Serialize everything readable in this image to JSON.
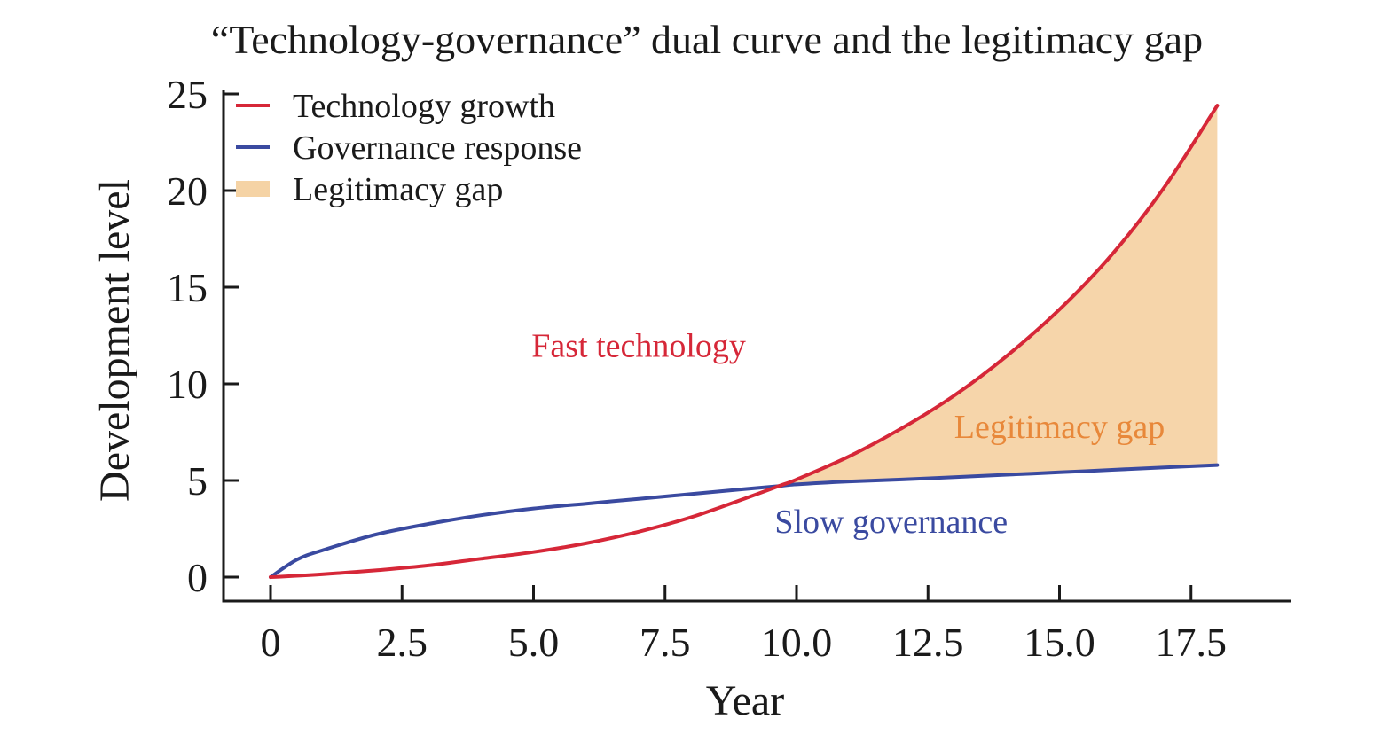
{
  "chart_data": {
    "type": "line",
    "title": "“Technology-governance” dual curve and the legitimacy gap",
    "xlabel": "Year",
    "ylabel": "Development level",
    "xlim": [
      -0.9,
      19.4
    ],
    "ylim": [
      -1.2,
      25.2
    ],
    "xticks": [
      0,
      2.5,
      5.0,
      7.5,
      10.0,
      12.5,
      15.0,
      17.5
    ],
    "xtick_labels": [
      "0",
      "2.5",
      "5.0",
      "7.5",
      "10.0",
      "12.5",
      "15.0",
      "17.5"
    ],
    "yticks": [
      0,
      5,
      10,
      15,
      20,
      25
    ],
    "ytick_labels": [
      "0",
      "5",
      "10",
      "15",
      "20",
      "25"
    ],
    "grid": false,
    "legend_position": "top-left",
    "series": [
      {
        "name": "Technology growth",
        "color": "#d62738",
        "x": [
          0,
          1,
          2,
          3,
          4,
          5,
          6,
          7,
          8,
          9,
          9.7,
          10,
          11,
          12,
          13,
          14,
          15,
          16,
          17,
          18
        ],
        "y": [
          0,
          0.15,
          0.35,
          0.6,
          0.95,
          1.3,
          1.75,
          2.35,
          3.1,
          4.05,
          4.75,
          5.05,
          6.25,
          7.7,
          9.4,
          11.45,
          13.85,
          16.7,
          20.2,
          24.4
        ]
      },
      {
        "name": "Governance response",
        "color": "#3a4aa0",
        "x": [
          0,
          0.5,
          1,
          2,
          3,
          4,
          5,
          6,
          7,
          8,
          9,
          9.7,
          10,
          11,
          12,
          13,
          14,
          15,
          16,
          17,
          18
        ],
        "y": [
          0,
          0.9,
          1.4,
          2.2,
          2.75,
          3.2,
          3.55,
          3.8,
          4.05,
          4.3,
          4.55,
          4.72,
          4.8,
          4.95,
          5.05,
          5.17,
          5.3,
          5.42,
          5.55,
          5.68,
          5.8
        ]
      }
    ],
    "fill_between": {
      "name": "Legitimacy gap",
      "color": "#f5d3a5",
      "x_start": 9.7,
      "x_end": 18,
      "upper": "Technology growth",
      "lower": "Governance response"
    },
    "legend": [
      {
        "label": "Technology growth",
        "kind": "line",
        "color": "#d62738"
      },
      {
        "label": "Governance response",
        "kind": "line",
        "color": "#3a4aa0"
      },
      {
        "label": "Legitimacy gap",
        "kind": "patch",
        "color": "#f5d3a5"
      }
    ],
    "annotations": [
      {
        "text": "Fast technology",
        "x": 7.0,
        "y": 12.0,
        "color": "#d62738"
      },
      {
        "text": "Legitimacy gap",
        "x": 15.0,
        "y": 7.8,
        "color": "#e8883a"
      },
      {
        "text": "Slow governance",
        "x": 11.8,
        "y": 2.9,
        "color": "#3a4aa0"
      }
    ]
  }
}
